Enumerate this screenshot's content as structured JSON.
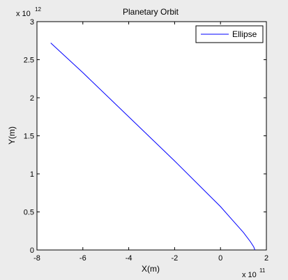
{
  "window": {
    "background": "#ececec"
  },
  "chart_data": {
    "type": "line",
    "title": "Planetary Orbit",
    "xlabel": "X(m)",
    "ylabel": "Y(m)",
    "x_exponent_label": "x 10",
    "x_exponent": "11",
    "y_exponent_label": "x 10",
    "y_exponent": "12",
    "xlim": [
      -800000000000.0,
      200000000000.0
    ],
    "ylim": [
      0,
      3000000000000.0
    ],
    "x_ticks": [
      -800000000000.0,
      -600000000000.0,
      -400000000000.0,
      -200000000000.0,
      0,
      200000000000.0
    ],
    "x_tick_labels": [
      "-8",
      "-6",
      "-4",
      "-2",
      "0",
      "2"
    ],
    "y_ticks": [
      0,
      500000000000.0,
      1000000000000.0,
      1500000000000.0,
      2000000000000.0,
      2500000000000.0,
      3000000000000.0
    ],
    "y_tick_labels": [
      "0",
      "0.5",
      "1",
      "1.5",
      "2",
      "2.5",
      "3"
    ],
    "grid": false,
    "legend_position": "top-right",
    "series": [
      {
        "name": "Ellipse",
        "color": "#0000ff",
        "x": [
          -740000000000.0,
          -600000000000.0,
          -400000000000.0,
          -200000000000.0,
          0,
          50000000000.0,
          100000000000.0,
          130000000000.0,
          145000000000.0,
          150000000000.0
        ],
        "y": [
          2720000000000.0,
          2330000000000.0,
          1750000000000.0,
          1170000000000.0,
          570000000000.0,
          400000000000.0,
          230000000000.0,
          110000000000.0,
          40000000000.0,
          0
        ]
      }
    ]
  }
}
